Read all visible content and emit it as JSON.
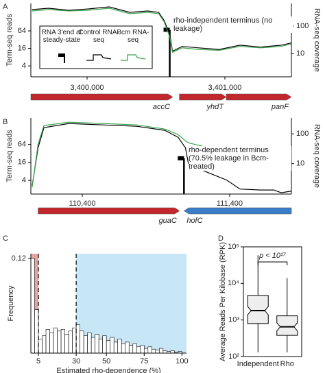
{
  "chart_data": [
    {
      "panel": "A",
      "type": "line",
      "xlim": [
        3399592,
        3401483
      ],
      "xticks": [
        {
          "value": 3400000,
          "label": "3,400,000"
        },
        {
          "value": 3401000,
          "label": "3,401,000"
        }
      ],
      "ylabel": "Term-seq reads",
      "ylim": [
        1.7,
        560
      ],
      "yticks": [
        4,
        16,
        64
      ],
      "ylog": true,
      "y2label": "RNA-seq coverage",
      "y2lim": [
        1.4,
        670
      ],
      "y2ticks": [
        10,
        100
      ],
      "y2log": true,
      "x": [
        3399600,
        3399720,
        3399870,
        3400010,
        3400160,
        3400310,
        3400440,
        3400520,
        3400560,
        3400600,
        3400620,
        3400690,
        3400810,
        3400960,
        3401110,
        3401260,
        3401410,
        3401480
      ],
      "series": [
        {
          "name": "RNA 3'end at steady-state",
          "color": "#000000",
          "x": [
            3400600
          ],
          "values": [
            70
          ]
        },
        {
          "name": "Control RNA-seq",
          "color": "#000000",
          "axis": "y2",
          "values": [
            398,
            447,
            376,
            422,
            501,
            316,
            355,
            316,
            158,
            50,
            12,
            18,
            16,
            14,
            20,
            17,
            20,
            24
          ]
        },
        {
          "name": "Bcm RNA-seq",
          "color": "#3aa64a",
          "axis": "y2",
          "values": [
            355,
            398,
            355,
            376,
            447,
            282,
            316,
            282,
            141,
            40,
            11,
            16,
            14,
            13,
            18,
            16,
            18,
            22
          ]
        }
      ],
      "legend": "upper left",
      "annotation": "rho-independent terminus (no leakage)",
      "genes": [
        {
          "name": "accC",
          "start": 3399592,
          "end": 3400622,
          "direction": "right",
          "color": "#c1272d"
        },
        {
          "name": "yhdT",
          "start": 3400670,
          "end": 3401010,
          "direction": "right",
          "color": "#c1272d"
        },
        {
          "name": "panF",
          "start": 3401010,
          "end": 3401483,
          "direction": "right",
          "color": "#c1272d"
        }
      ]
    },
    {
      "panel": "B",
      "type": "line",
      "xlim": [
        110051,
        111819
      ],
      "xticks": [
        {
          "value": 110400,
          "label": "110,400"
        },
        {
          "value": 111400,
          "label": "111,400"
        }
      ],
      "ylabel": "Term-seq reads",
      "ylim": [
        1.4,
        490
      ],
      "yticks": [
        4,
        16,
        64
      ],
      "ylog": true,
      "y2label": "RNA-seq coverage",
      "y2lim": [
        0.95,
        343
      ],
      "y2ticks": [
        10,
        100
      ],
      "y2log": true,
      "x": [
        110060,
        110100,
        110140,
        110310,
        110540,
        110770,
        110960,
        111050,
        111100,
        111120,
        111240,
        111380,
        111470,
        111610,
        111700,
        111750,
        111820
      ],
      "series": [
        {
          "name": "RNA 3'end at steady-state",
          "color": "#000000",
          "x": [
            111090
          ],
          "values": [
            22
          ]
        },
        {
          "name": "Control RNA-seq",
          "color": "#000000",
          "axis": "y2",
          "values": [
            1.8,
            34,
            162,
            223,
            200,
            180,
            131,
            77,
            34,
            10,
            5.3,
            2.8,
            1.4,
            1.3,
            1.3,
            1.05,
            1.2
          ]
        },
        {
          "name": "Bcm RNA-seq",
          "color": "#3aa64a",
          "axis": "y2",
          "values": [
            1.6,
            45,
            190,
            248,
            223,
            200,
            145,
            95,
            58,
            50,
            36,
            26,
            21,
            17,
            14,
            11,
            14
          ]
        }
      ],
      "annotation": "rho-dependent terminus (70.5% leakage in Bcm-treated)",
      "genes": [
        {
          "name": "guaC",
          "start": 110100,
          "end": 111060,
          "direction": "right",
          "color": "#c1272d"
        },
        {
          "name": "hofC",
          "start": 111090,
          "end": 111819,
          "direction": "left",
          "color": "#3a7dc9"
        }
      ]
    },
    {
      "panel": "C",
      "type": "histogram",
      "xlabel": "Estimated rho-dependence (%)",
      "ylabel": "Frequency",
      "bins": [
        0,
        2.5,
        5,
        7.5,
        10,
        12.5,
        15,
        17.5,
        20,
        22.5,
        25,
        27.5,
        30,
        32.5,
        35,
        37.5,
        40,
        42.5,
        45,
        47.5,
        50,
        52.5,
        55,
        57.5,
        60,
        62.5,
        65,
        67.5,
        70,
        72.5,
        75,
        77.5,
        80,
        82.5,
        85,
        87.5,
        90,
        92.5,
        95,
        97.5,
        100
      ],
      "values": [
        0.12,
        0.055,
        0.018,
        0.022,
        0.03,
        0.026,
        0.032,
        0.028,
        0.03,
        0.024,
        0.028,
        0.032,
        0.036,
        0.028,
        0.022,
        0.026,
        0.02,
        0.024,
        0.018,
        0.022,
        0.016,
        0.02,
        0.014,
        0.018,
        0.012,
        0.014,
        0.01,
        0.012,
        0.008,
        0.01,
        0.006,
        0.008,
        0.005,
        0.004,
        0.006,
        0.003,
        0.002,
        0.003,
        0.001,
        0.002
      ],
      "color": "#ffffff",
      "xlim": [
        0,
        103
      ],
      "xticks": [
        5,
        30,
        50,
        75,
        100
      ],
      "ylim": [
        0,
        0.126
      ],
      "yticks": [
        0.12
      ],
      "regions": [
        {
          "range": [
            0,
            5
          ],
          "color": "#e9a3a3"
        },
        {
          "range": [
            30,
            103
          ],
          "color": "#c7e7f6"
        }
      ],
      "vlines": [
        5,
        30
      ]
    },
    {
      "panel": "D",
      "type": "box",
      "ylabel": "Average Reads Per Kilobase (RPK)",
      "categories": [
        "Independent",
        "Rho"
      ],
      "min": [
        130,
        130
      ],
      "q1": [
        800,
        380
      ],
      "median": [
        1800,
        650
      ],
      "q3": [
        4700,
        1300
      ],
      "max": [
        59000,
        14000
      ],
      "color": "#eeeeee",
      "ylog": true,
      "ylim": [
        100,
        100000
      ],
      "yticks": [
        {
          "value": 100,
          "label": "10²"
        },
        {
          "value": 1000,
          "label": "10³"
        },
        {
          "value": 10000,
          "label": "10⁴"
        },
        {
          "value": 100000,
          "label": "10⁵"
        }
      ],
      "annotation": "p < 10¹⁷"
    }
  ]
}
